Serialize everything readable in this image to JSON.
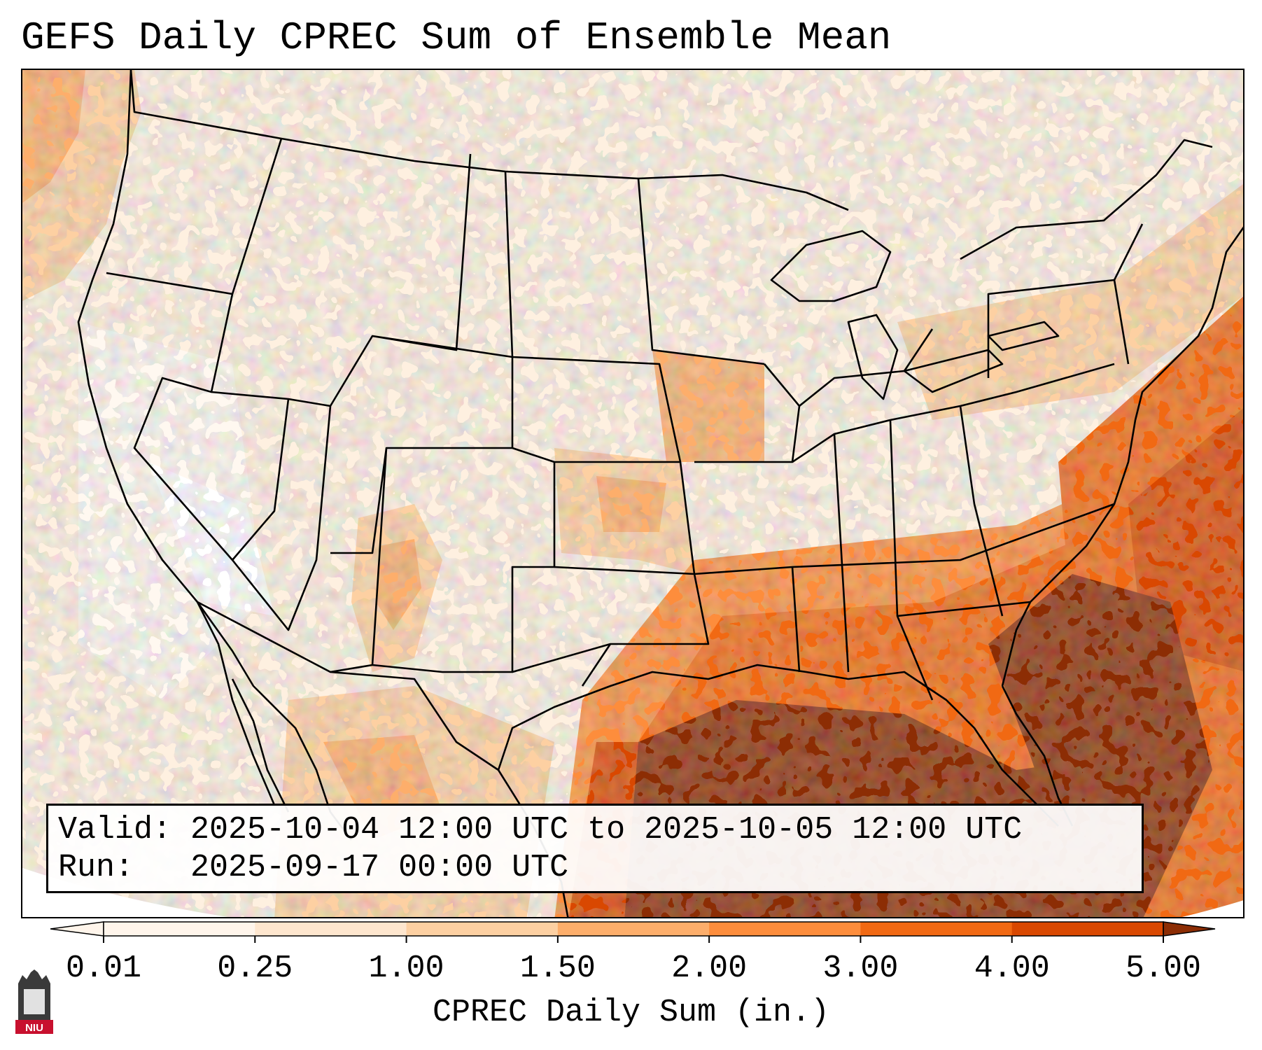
{
  "title": "GEFS Daily CPREC Sum of Ensemble Mean",
  "info": {
    "valid_label": "Valid:",
    "valid_value": "2025-10-04 12:00 UTC to 2025-10-05 12:00 UTC",
    "run_label": "Run:",
    "run_value": "2025-09-17 00:00 UTC"
  },
  "colorbar": {
    "label": "CPREC Daily Sum (in.)",
    "ticks": [
      "0.01",
      "0.25",
      "1.00",
      "1.50",
      "2.00",
      "3.00",
      "4.00",
      "5.00"
    ],
    "colors": [
      "#fff5eb",
      "#fee6ce",
      "#fdd0a2",
      "#fdae6b",
      "#fd8d3c",
      "#f16913",
      "#d94801",
      "#8c2d04"
    ],
    "extend": "both"
  },
  "logo": {
    "text": "NIU",
    "color": "#c8102e"
  },
  "map": {
    "projection": "lambert-conformal",
    "domain": "CONUS",
    "overlays": [
      "states",
      "coastlines",
      "country borders"
    ]
  }
}
